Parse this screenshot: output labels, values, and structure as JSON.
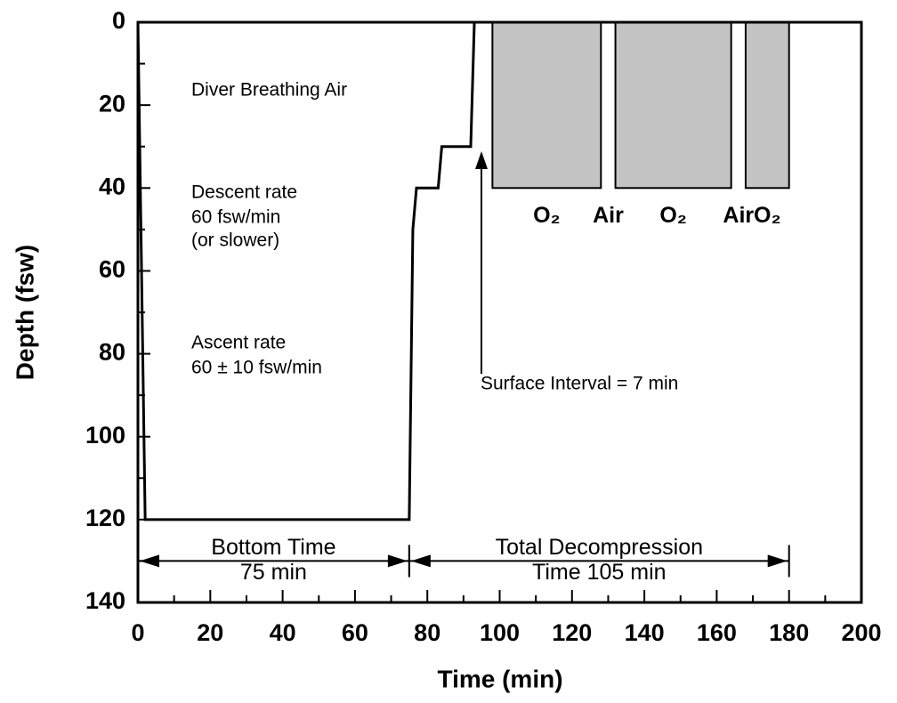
{
  "chart_data": {
    "type": "line",
    "xlabel": "Time (min)",
    "ylabel": "Depth (fsw)",
    "xlim": [
      0,
      200
    ],
    "ylim": [
      0,
      140
    ],
    "y_inverted": true,
    "xticks": [
      0,
      20,
      40,
      60,
      80,
      100,
      120,
      140,
      160,
      180,
      200
    ],
    "yticks": [
      0,
      20,
      40,
      60,
      80,
      100,
      120,
      140
    ],
    "x": [
      0,
      2,
      75,
      76,
      77,
      83,
      84,
      92,
      93
    ],
    "series": [
      {
        "color": "#000000",
        "values": [
          0,
          120,
          120,
          50,
          40,
          40,
          30,
          30,
          0
        ]
      }
    ],
    "chamber": {
      "depth": 40,
      "color": "#c4c4c4",
      "segments": [
        {
          "name": "O₂",
          "start": 98,
          "end": 128,
          "shaded": true
        },
        {
          "name": "Air",
          "start": 128,
          "end": 132,
          "shaded": false
        },
        {
          "name": "O₂",
          "start": 132,
          "end": 164,
          "shaded": true
        },
        {
          "name": "Air",
          "start": 164,
          "end": 168,
          "shaded": false
        },
        {
          "name": "O₂",
          "start": 168,
          "end": 180,
          "shaded": true
        }
      ]
    },
    "intervals": [
      {
        "lines": [
          "Bottom Time",
          "75 min"
        ],
        "start": 0,
        "end": 75,
        "depth": 130
      },
      {
        "lines": [
          "Total Decompression",
          "Time 105 min"
        ],
        "start": 75,
        "end": 180,
        "depth": 130
      }
    ],
    "annotations": [
      "Diver Breathing Air",
      "Descent rate",
      "60 fsw/min",
      "(or slower)",
      "Ascent rate",
      "60 ± 10 fsw/min",
      "Surface Interval = 7 min"
    ]
  }
}
